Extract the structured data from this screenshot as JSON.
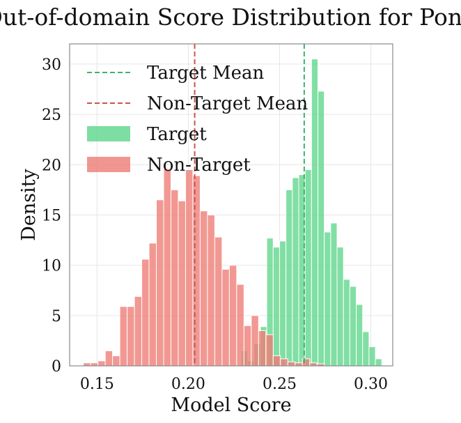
{
  "chart_data": {
    "type": "histogram",
    "title": "Out-of-domain Score Distribution for Pond",
    "xlabel": "Model Score",
    "ylabel": "Density",
    "xlim": [
      0.135,
      0.312
    ],
    "ylim": [
      0,
      32
    ],
    "x_ticks": [
      0.15,
      0.2,
      0.25,
      0.3
    ],
    "x_tick_labels": [
      "0.15",
      "0.20",
      "0.25",
      "0.30"
    ],
    "y_ticks": [
      0,
      5,
      10,
      15,
      20,
      25,
      30
    ],
    "y_tick_labels": [
      "0",
      "5",
      "10",
      "15",
      "20",
      "25",
      "30"
    ],
    "grid": true,
    "legend_position": "top-left",
    "series": [
      {
        "name": "Target",
        "color": "#5dd68b",
        "bins": [
          [
            0.229,
            0.2325,
            1.5
          ],
          [
            0.2325,
            0.236,
            0.5
          ],
          [
            0.236,
            0.2395,
            2.2
          ],
          [
            0.2395,
            0.243,
            3.9
          ],
          [
            0.243,
            0.2465,
            12.7
          ],
          [
            0.2465,
            0.25,
            11.8
          ],
          [
            0.25,
            0.2535,
            12.4
          ],
          [
            0.2535,
            0.257,
            17.5
          ],
          [
            0.257,
            0.2605,
            18.7
          ],
          [
            0.2605,
            0.264,
            19.0
          ],
          [
            0.264,
            0.2675,
            19.5
          ],
          [
            0.2675,
            0.271,
            30.5
          ],
          [
            0.271,
            0.2745,
            27.3
          ],
          [
            0.2745,
            0.278,
            13.3
          ],
          [
            0.278,
            0.2815,
            14.2
          ],
          [
            0.2815,
            0.285,
            11.8
          ],
          [
            0.285,
            0.2885,
            8.6
          ],
          [
            0.2885,
            0.292,
            7.9
          ],
          [
            0.292,
            0.2955,
            6.1
          ],
          [
            0.2955,
            0.299,
            3.4
          ],
          [
            0.299,
            0.3025,
            1.9
          ],
          [
            0.3025,
            0.306,
            0.7
          ]
        ]
      },
      {
        "name": "Non-Target",
        "color": "#ee7b74",
        "bins": [
          [
            0.1425,
            0.1465,
            0.3
          ],
          [
            0.1465,
            0.1505,
            0.3
          ],
          [
            0.1505,
            0.1545,
            0.5
          ],
          [
            0.1545,
            0.1585,
            1.5
          ],
          [
            0.1585,
            0.1625,
            1.0
          ],
          [
            0.1625,
            0.1665,
            5.9
          ],
          [
            0.1665,
            0.1705,
            5.9
          ],
          [
            0.1705,
            0.1745,
            6.9
          ],
          [
            0.1745,
            0.1785,
            10.6
          ],
          [
            0.1785,
            0.1825,
            12.2
          ],
          [
            0.1825,
            0.1865,
            16.5
          ],
          [
            0.1865,
            0.1905,
            19.6
          ],
          [
            0.1905,
            0.1945,
            17.5
          ],
          [
            0.1945,
            0.1985,
            16.4
          ],
          [
            0.1985,
            0.2025,
            19.5
          ],
          [
            0.2025,
            0.2065,
            18.9
          ],
          [
            0.2065,
            0.2105,
            15.4
          ],
          [
            0.2105,
            0.2145,
            15.0
          ],
          [
            0.2145,
            0.2185,
            12.8
          ],
          [
            0.2185,
            0.2225,
            9.6
          ],
          [
            0.2225,
            0.2265,
            10.0
          ],
          [
            0.2265,
            0.2305,
            8.1
          ],
          [
            0.2305,
            0.2345,
            4.0
          ],
          [
            0.2345,
            0.2385,
            5.0
          ],
          [
            0.2385,
            0.2425,
            3.5
          ],
          [
            0.2425,
            0.2465,
            3.1
          ],
          [
            0.2465,
            0.2505,
            1.0
          ],
          [
            0.2505,
            0.2545,
            0.7
          ],
          [
            0.2545,
            0.2585,
            0.4
          ],
          [
            0.2585,
            0.2625,
            0.3
          ],
          [
            0.2625,
            0.2665,
            0.7
          ],
          [
            0.2665,
            0.2705,
            0.3
          ],
          [
            0.2705,
            0.2745,
            0.2
          ]
        ]
      }
    ],
    "mean_lines": [
      {
        "name": "Target Mean",
        "x": 0.2635,
        "color": "#3bb36c"
      },
      {
        "name": "Non-Target Mean",
        "x": 0.2035,
        "color": "#c9544a"
      }
    ],
    "legend": [
      {
        "label": "Target Mean",
        "kind": "dashed",
        "color": "#3bb36c"
      },
      {
        "label": "Non-Target Mean",
        "kind": "dashed",
        "color": "#c9544a"
      },
      {
        "label": "Target",
        "kind": "patch",
        "color": "#5dd68b"
      },
      {
        "label": "Non-Target",
        "kind": "patch",
        "color": "#ee7b74"
      }
    ]
  }
}
